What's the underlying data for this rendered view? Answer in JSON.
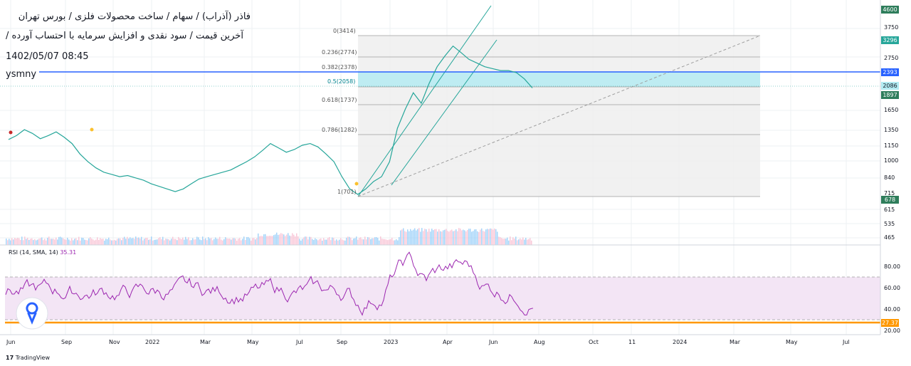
{
  "header": {
    "line1": "فاذر (آذراب) / سهام / ساخت محصولات فلزی / بورس تهران",
    "line2": "آخرین قیمت / سود نقدی و افزایش سرمایه با احتساب آورده /",
    "line3": "1402/05/07 08:45",
    "line4": "ysmny"
  },
  "price_tags": {
    "top": "4600",
    "high": "3296",
    "hline": "2393",
    "last": "2086",
    "low_fib": "1897",
    "bottom": "678",
    "rsi_value": "27.37",
    "rsi_low": "20.00"
  },
  "price_axis_ticks": [
    "3750",
    "3750",
    "2750",
    "1650",
    "1350",
    "1150",
    "1000",
    "840",
    "715",
    "615",
    "535",
    "465"
  ],
  "rsi_axis_ticks": [
    "80.00",
    "60.00",
    "40.00"
  ],
  "time_axis": [
    "Jun",
    "Sep",
    "Nov",
    "2022",
    "Mar",
    "May",
    "Jul",
    "Sep",
    "2023",
    "Apr",
    "Jun",
    "Aug",
    "Oct",
    "11",
    "2024",
    "Mar",
    "May",
    "Jul"
  ],
  "fib_levels": [
    {
      "label": "0(3414)",
      "value": 3414
    },
    {
      "label": "0.236(2774)",
      "value": 2774
    },
    {
      "label": "0.382(2378)",
      "value": 2378
    },
    {
      "label": "0.5(2058)",
      "value": 2058
    },
    {
      "label": "0.618(1737)",
      "value": 1737
    },
    {
      "label": "0.786(1282)",
      "value": 1282
    },
    {
      "label": "1(701)",
      "value": 701
    }
  ],
  "rsi": {
    "label": "RSI (14, SMA, 14)",
    "value": "35.31",
    "upper": 70,
    "lower": 30
  },
  "footer": {
    "brand": "TradingView"
  },
  "colors": {
    "up": "#26a69a",
    "down": "#ef5350",
    "hline": "#2962ff",
    "rsi": "#9c27b0",
    "rsi_band": "#f3e5f5",
    "fib_zone": "#b2ebf2",
    "orange": "#ff9800"
  },
  "chart_data": {
    "type": "line",
    "series": [
      {
        "values": [
          1250,
          1300,
          1380,
          1330,
          1260,
          1300,
          1350,
          1280,
          1200,
          1080,
          1000,
          940,
          900,
          880,
          860,
          870,
          850,
          830,
          800,
          780,
          760,
          740,
          760,
          800,
          840,
          860,
          880,
          900,
          920,
          960,
          1000,
          1050,
          1120,
          1200,
          1150,
          1100,
          1130,
          1180,
          1200,
          1160,
          1080,
          1000,
          860,
          760,
          720,
          760,
          820,
          860,
          1000,
          1400,
          1700,
          2000,
          1800,
          2200,
          2600,
          2900,
          3200,
          3000,
          2800,
          2700,
          2600,
          2550,
          2500,
          2500,
          2450,
          2300,
          2100
        ]
      }
    ]
  }
}
